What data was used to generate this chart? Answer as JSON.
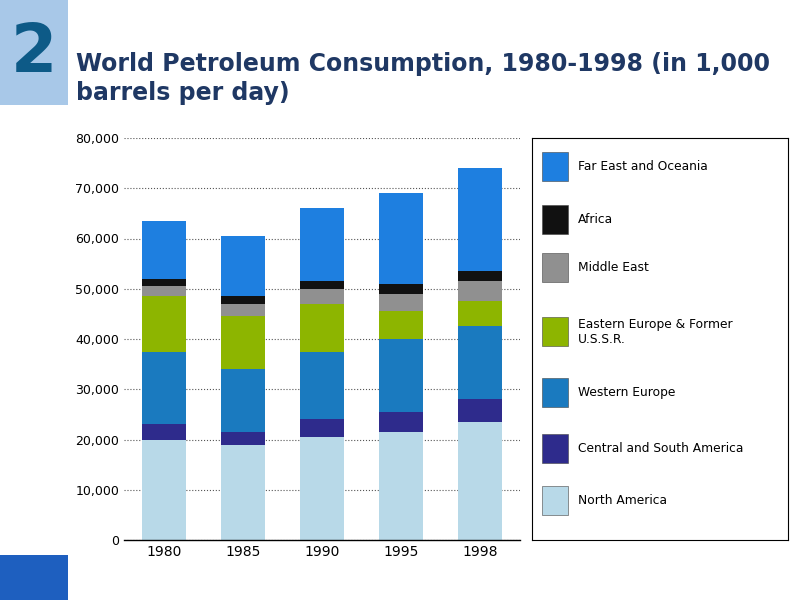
{
  "years": [
    "1980",
    "1985",
    "1990",
    "1995",
    "1998"
  ],
  "categories": [
    "North America",
    "Central and South America",
    "Western Europe",
    "Eastern Europe & Former U.S.S.R.",
    "Middle East",
    "Africa",
    "Far East and Oceania"
  ],
  "colors": [
    "#b8d9e8",
    "#2e2b8c",
    "#1a7abf",
    "#8db500",
    "#909090",
    "#111111",
    "#1e7fe0"
  ],
  "data": {
    "North America": [
      20000,
      19000,
      20500,
      21500,
      23500
    ],
    "Central and South America": [
      3000,
      2500,
      3500,
      4000,
      4500
    ],
    "Western Europe": [
      14500,
      12500,
      13500,
      14500,
      14500
    ],
    "Eastern Europe & Former U.S.S.R.": [
      11000,
      10500,
      9500,
      5500,
      5000
    ],
    "Middle East": [
      2000,
      2500,
      3000,
      3500,
      4000
    ],
    "Africa": [
      1500,
      1500,
      1500,
      2000,
      2000
    ],
    "Far East and Oceania": [
      11500,
      12000,
      14500,
      18000,
      20500
    ]
  },
  "legend_categories": [
    "Far East and Oceania",
    "Africa",
    "Middle East",
    "Eastern Europe & Former\nU.S.S.R.",
    "Western Europe",
    "Central and South America",
    "North America"
  ],
  "legend_colors": [
    "#1e7fe0",
    "#111111",
    "#909090",
    "#8db500",
    "#1a7abf",
    "#2e2b8c",
    "#b8d9e8"
  ],
  "title_line1": "World Petroleum Consumption, 1980-1998 (in 1,000",
  "title_line2": "barrels per day)",
  "ylim": [
    0,
    80000
  ],
  "yticks": [
    0,
    10000,
    20000,
    30000,
    40000,
    50000,
    60000,
    70000,
    80000
  ],
  "background_color": "#ffffff",
  "title_color": "#1f3864",
  "title_fontsize": 17,
  "badge_number": "2",
  "badge_text_color": "#0d5a87",
  "badge_light_color": "#a8c8e8",
  "sidebar_dark_color": "#0a1a7a",
  "bottom_square_color": "#1e5fbf"
}
